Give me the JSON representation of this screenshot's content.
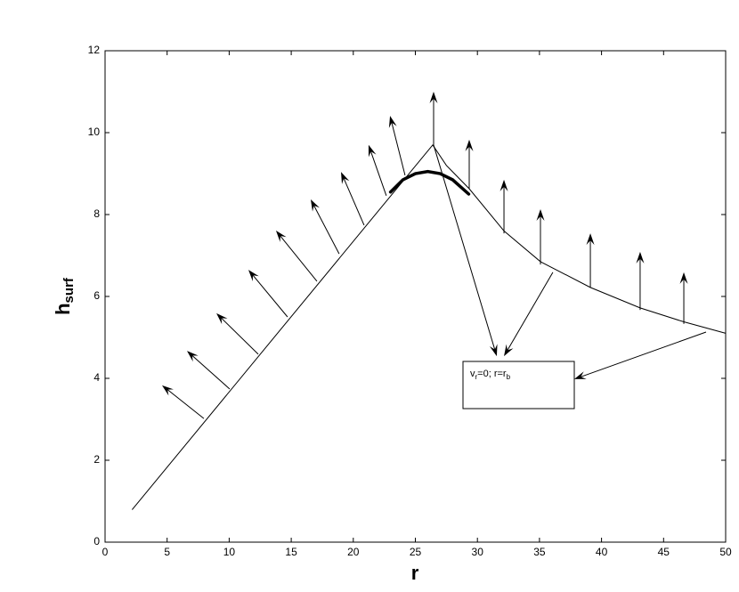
{
  "chart_data": {
    "type": "line",
    "xlabel": "r",
    "ylabel": [
      "h",
      "surf"
    ],
    "xlim": [
      0,
      50
    ],
    "ylim": [
      0,
      12
    ],
    "xticks": [
      0,
      5,
      10,
      15,
      20,
      25,
      30,
      35,
      40,
      45,
      50
    ],
    "yticks": [
      0,
      2,
      4,
      6,
      8,
      10,
      12
    ],
    "series": [
      {
        "color": "#000000",
        "width": 1,
        "x": [
          2.2,
          26.4,
          27.5,
          29.34,
          32.14,
          35.08,
          39.1,
          43.11,
          46.63,
          50
        ],
        "y": [
          0.8,
          9.7,
          9.2,
          8.63,
          7.6,
          6.85,
          6.22,
          5.72,
          5.38,
          5.1
        ]
      },
      {
        "color": "#000000",
        "width": 3.5,
        "x": [
          23,
          24,
          25,
          26,
          27,
          28,
          29.3
        ],
        "y": [
          8.55,
          8.85,
          9.0,
          9.05,
          9.0,
          8.85,
          8.5
        ]
      }
    ],
    "vectors": {
      "x": [
        7.96,
        10.04,
        12.34,
        14.7,
        17.07,
        18.86,
        20.87,
        22.66,
        24.17,
        26.47,
        29.34,
        32.14,
        35.08,
        39.1,
        43.11,
        46.63,
        26.47,
        36.08,
        48.42
      ],
      "y": [
        3.02,
        3.74,
        4.59,
        5.5,
        6.37,
        7.04,
        7.74,
        8.46,
        8.96,
        9.7,
        8.63,
        7.54,
        6.78,
        6.22,
        5.67,
        5.33,
        9.7,
        6.59,
        5.13
      ],
      "x_end": [
        4.59,
        6.6,
        8.97,
        11.55,
        13.77,
        16.57,
        19.01,
        21.23,
        22.96,
        26.47,
        29.34,
        32.14,
        35.08,
        39.1,
        43.11,
        46.63,
        31.56,
        32.14,
        37.8
      ],
      "y_end": [
        3.83,
        4.67,
        5.59,
        6.65,
        7.61,
        8.37,
        9.04,
        9.7,
        10.41,
        11.0,
        9.83,
        8.85,
        8.13,
        7.54,
        7.09,
        6.59,
        4.54,
        4.54,
        3.98
      ]
    },
    "annotation": [
      "v",
      "r",
      "=0; r=r",
      "b"
    ]
  }
}
